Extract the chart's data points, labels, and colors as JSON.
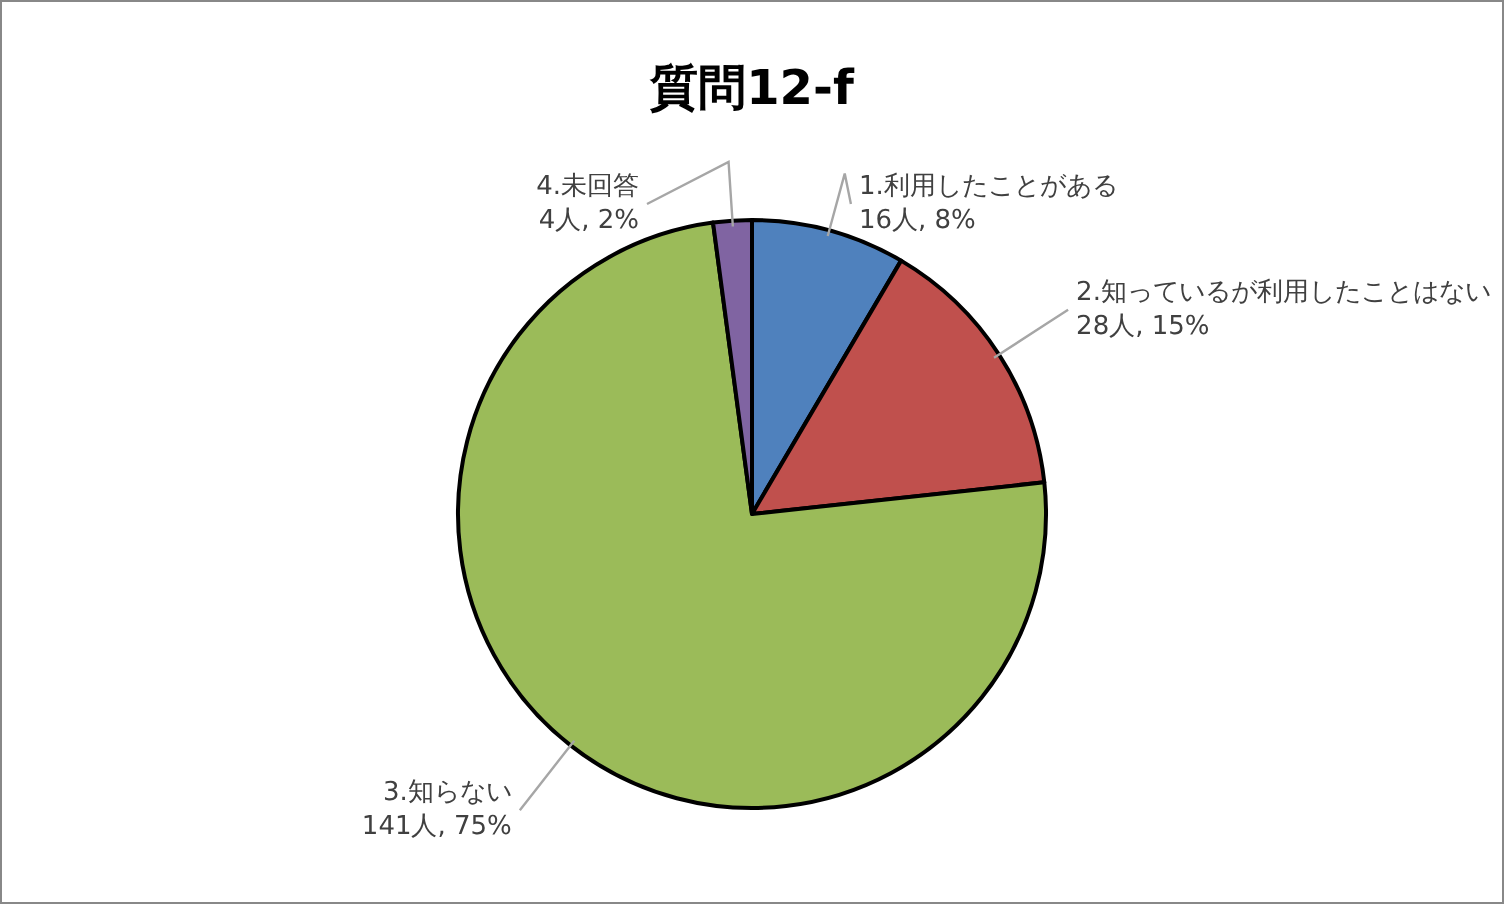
{
  "chart_data": {
    "type": "pie",
    "title": "質問12-f",
    "categories": [
      "1.利用したことがある",
      "2.知っているが利用したことはない",
      "3.知らない",
      "4.未回答"
    ],
    "values": [
      16,
      28,
      141,
      4
    ],
    "value_labels": [
      "16人, 8%",
      "28人, 15%",
      "141人, 75%",
      "4人, 2%"
    ],
    "colors": [
      "#4f81bd",
      "#c0504d",
      "#9bbb59",
      "#8064a2"
    ]
  }
}
